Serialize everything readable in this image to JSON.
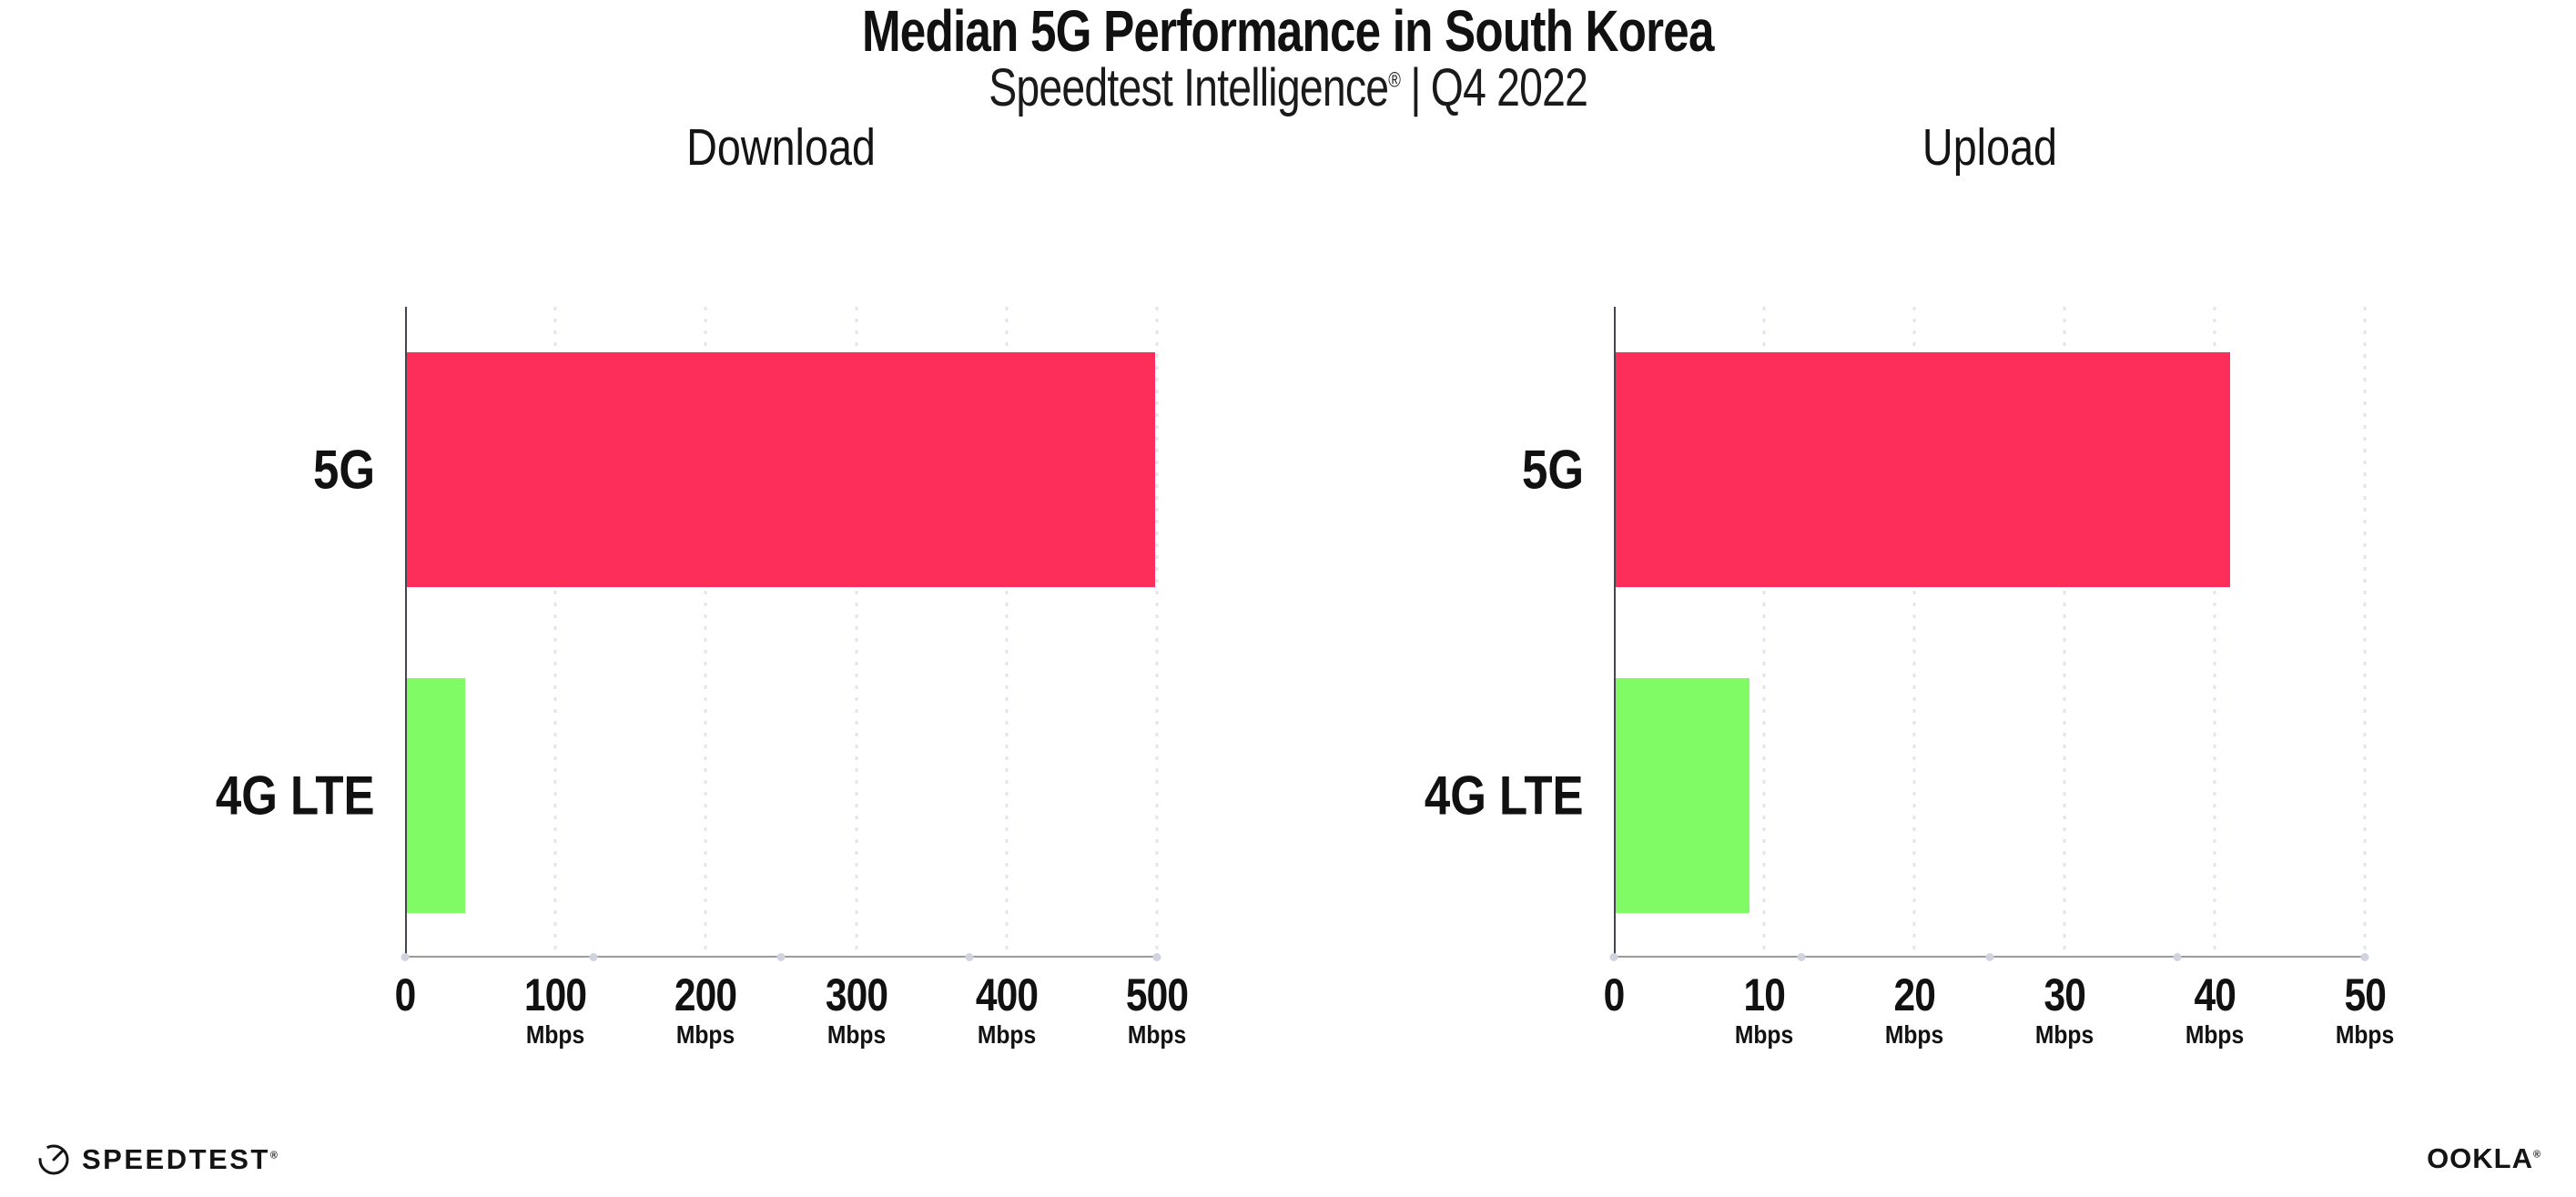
{
  "header": {
    "title": "Median 5G Performance in South Korea",
    "subtitle_brand": "Speedtest Intelligence",
    "subtitle_reg": "®",
    "subtitle_sep": "|",
    "subtitle_period": "Q4 2022"
  },
  "footer": {
    "speedtest_label": "SPEEDTEST",
    "speedtest_reg": "®",
    "ookla_label": "OOKLA",
    "ookla_reg": "®"
  },
  "colors": {
    "bar_5g": "#FD2E5A",
    "bar_4g": "#80FB66",
    "gridline": "#E3E3EE",
    "axis_dot": "#D2D3E0",
    "xaxis_line": "#9B9B9B",
    "yaxis_line": "#45454D",
    "text": "#111111"
  },
  "chart_data": [
    {
      "type": "bar",
      "orientation": "horizontal",
      "title": "Download",
      "categories": [
        "5G",
        "4G LTE"
      ],
      "values": [
        499,
        40
      ],
      "unit": "Mbps",
      "xlabel": "",
      "ylabel": "",
      "xlim": [
        0,
        500
      ],
      "xticks": [
        0,
        100,
        200,
        300,
        400,
        500
      ],
      "bar_colors": [
        "#FD2E5A",
        "#80FB66"
      ],
      "grid": "dotted-vertical",
      "legend": "none"
    },
    {
      "type": "bar",
      "orientation": "horizontal",
      "title": "Upload",
      "categories": [
        "5G",
        "4G LTE"
      ],
      "values": [
        41,
        9
      ],
      "unit": "Mbps",
      "xlabel": "",
      "ylabel": "",
      "xlim": [
        0,
        50
      ],
      "xticks": [
        0,
        10,
        20,
        30,
        40,
        50
      ],
      "bar_colors": [
        "#FD2E5A",
        "#80FB66"
      ],
      "grid": "dotted-vertical",
      "legend": "none"
    }
  ]
}
